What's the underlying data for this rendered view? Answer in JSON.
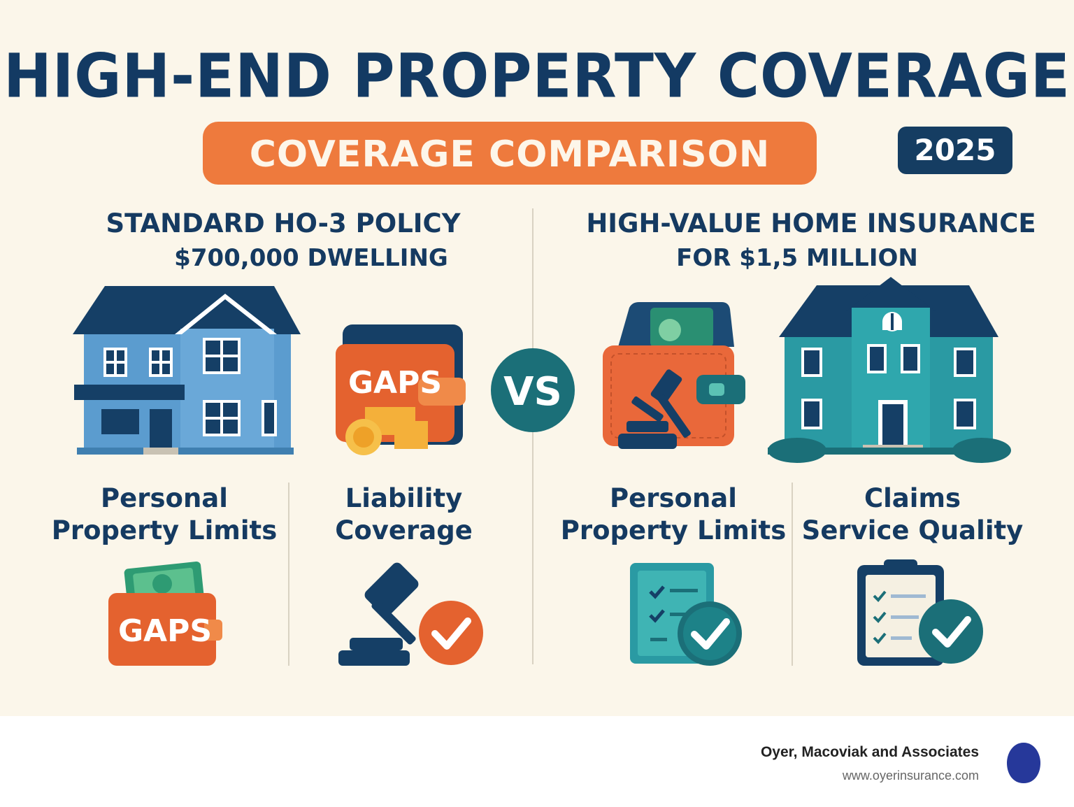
{
  "header": {
    "title": "HIGH-END PROPERTY COVERAGE",
    "banner": "COVERAGE COMPARISON",
    "year": "2025"
  },
  "left": {
    "heading": "STANDARD HO-3 POLICY",
    "subheading": "$700,000 DWELLING",
    "wallet_label": "GAPS",
    "col1_label_line1": "Personal",
    "col1_label_line2": "Property Limits",
    "col1_badge": "GAPS",
    "col2_label_line1": "Liability",
    "col2_label_line2": "Coverage"
  },
  "vs_label": "VS",
  "right": {
    "heading": "HIGH-VALUE HOME INSURANCE",
    "subheading": "FOR $1,5 MILLION",
    "col1_label_line1": "Personal",
    "col1_label_line2": "Property Limits",
    "col2_label_line1": "Claims",
    "col2_label_line2": "Service Quality"
  },
  "footer": {
    "company": "Oyer, Macoviak and Associates",
    "url": "www.oyerinsurance.com"
  },
  "colors": {
    "navy": "#133a63",
    "orange": "#ee7a3d",
    "teal": "#1f8f8f",
    "blue_house": "#5b9ccf",
    "cream": "#fbf6ea"
  }
}
